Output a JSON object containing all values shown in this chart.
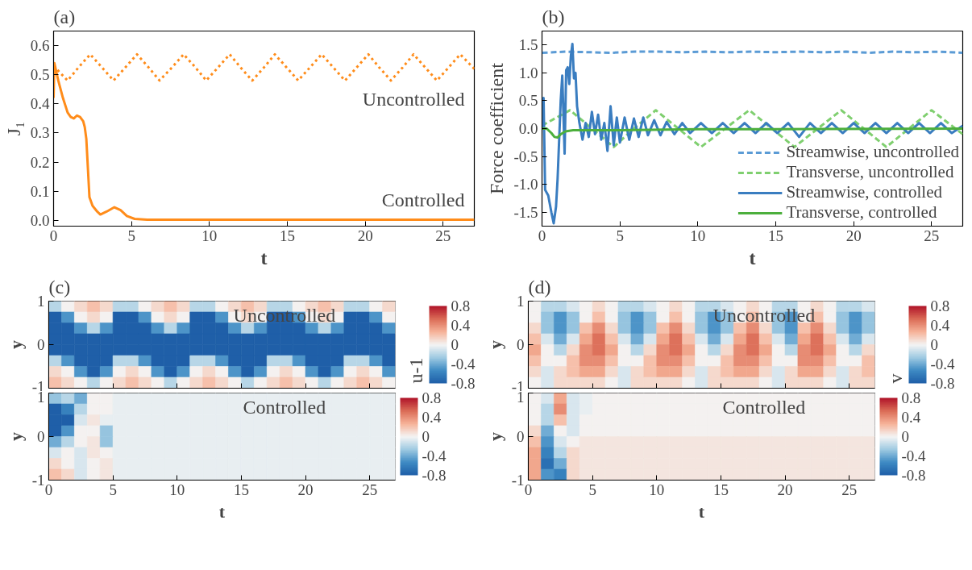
{
  "chart_data": [
    {
      "type": "line",
      "title": "(a)",
      "xlabel": "t",
      "ylabel": "J₁",
      "xlim": [
        0,
        27
      ],
      "ylim": [
        -0.02,
        0.65
      ],
      "xticks": [
        0,
        5,
        10,
        15,
        20,
        25
      ],
      "yticks": [
        {
          "value": 0,
          "label": "0.0"
        },
        {
          "value": 0.1,
          "label": "0.1"
        },
        {
          "value": 0.2,
          "label": "0.2"
        },
        {
          "value": 0.3,
          "label": "0.3"
        },
        {
          "value": 0.4,
          "label": "0.4"
        },
        {
          "value": 0.5,
          "label": "0.5"
        },
        {
          "value": 0.6,
          "label": "0.6"
        }
      ],
      "series": [
        {
          "name": "Uncontrolled",
          "color": "#ff8c1a",
          "line_style": "dotted",
          "x": [
            0,
            0.9,
            1.6,
            2.35,
            3.1,
            3.85,
            4.6,
            5.35,
            6.1,
            6.8,
            7.6,
            8.35,
            9.1,
            9.8,
            10.55,
            11.3,
            12.0,
            12.75,
            13.5,
            14.2,
            14.95,
            15.7,
            16.45,
            17.2,
            17.95,
            18.7,
            19.45,
            20.2,
            20.9,
            21.65,
            22.4,
            23.1,
            23.85,
            24.6,
            25.35,
            26.1,
            27
          ],
          "values": [
            0.53,
            0.48,
            0.525,
            0.57,
            0.525,
            0.48,
            0.525,
            0.57,
            0.525,
            0.48,
            0.525,
            0.57,
            0.525,
            0.48,
            0.525,
            0.57,
            0.525,
            0.48,
            0.525,
            0.57,
            0.525,
            0.48,
            0.525,
            0.57,
            0.525,
            0.48,
            0.525,
            0.57,
            0.525,
            0.48,
            0.525,
            0.57,
            0.525,
            0.48,
            0.525,
            0.57,
            0.52
          ]
        },
        {
          "name": "Controlled",
          "color": "#ff8c1a",
          "line_style": "solid",
          "x": [
            0,
            0.05,
            0.3,
            0.6,
            0.9,
            1.1,
            1.3,
            1.5,
            1.7,
            1.9,
            2.0,
            2.1,
            2.2,
            2.3,
            2.5,
            2.8,
            3.0,
            3.4,
            3.9,
            4.3,
            4.7,
            5.2,
            6,
            27
          ],
          "values": [
            0.42,
            0.54,
            0.48,
            0.42,
            0.37,
            0.355,
            0.35,
            0.36,
            0.355,
            0.34,
            0.32,
            0.28,
            0.18,
            0.08,
            0.05,
            0.03,
            0.02,
            0.03,
            0.045,
            0.035,
            0.015,
            0.005,
            0.002,
            0.002
          ]
        }
      ]
    },
    {
      "type": "line",
      "title": "(b)",
      "xlabel": "t",
      "ylabel": "Force coefficient",
      "xlim": [
        0,
        27
      ],
      "ylim": [
        -1.75,
        1.75
      ],
      "xticks": [
        0,
        5,
        10,
        15,
        20,
        25
      ],
      "yticks": [
        {
          "value": -1.5,
          "label": "-1.5"
        },
        {
          "value": -1,
          "label": "-1.0"
        },
        {
          "value": -0.5,
          "label": "-0.5"
        },
        {
          "value": 0,
          "label": "0.0"
        },
        {
          "value": 0.5,
          "label": "0.5"
        },
        {
          "value": 1,
          "label": "1.0"
        },
        {
          "value": 1.5,
          "label": "1.5"
        }
      ],
      "legend": "bottom right",
      "series": [
        {
          "name": "Streamwise, uncontrolled",
          "color": "#5b9bd5",
          "line_style": "dashed",
          "x": [
            0,
            1.5,
            3,
            4.5,
            6,
            7.5,
            9,
            10.5,
            12,
            13.5,
            15,
            16.5,
            18,
            19.5,
            21,
            22.5,
            24,
            25.5,
            27
          ],
          "values": [
            1.36,
            1.38,
            1.37,
            1.36,
            1.38,
            1.38,
            1.37,
            1.38,
            1.37,
            1.38,
            1.37,
            1.38,
            1.37,
            1.38,
            1.36,
            1.38,
            1.37,
            1.38,
            1.36
          ]
        },
        {
          "name": "Transverse, uncontrolled",
          "color": "#7fcf6f",
          "line_style": "dashed",
          "x": [
            0,
            0.3,
            1.8,
            3.2,
            4.6,
            5.9,
            7.3,
            8.75,
            10.2,
            11.75,
            13.3,
            14.75,
            16.2,
            17.7,
            19.2,
            20.65,
            22.1,
            23.55,
            25.0,
            27
          ],
          "values": [
            0.05,
            0.1,
            0.33,
            0,
            -0.33,
            0,
            0.33,
            0,
            -0.33,
            0,
            0.33,
            0,
            -0.33,
            0,
            0.33,
            0,
            -0.33,
            0,
            0.33,
            -0.1
          ]
        },
        {
          "name": "Streamwise, controlled",
          "color": "#3a7dc0",
          "line_style": "solid",
          "x": [
            0,
            0.1,
            0.2,
            0.4,
            0.6,
            0.75,
            0.9,
            1.0,
            1.1,
            1.2,
            1.3,
            1.45,
            1.55,
            1.65,
            1.75,
            1.85,
            1.95,
            2.05,
            2.15,
            2.25,
            2.4,
            2.6,
            2.8,
            3.0,
            3.2,
            3.4,
            3.6,
            3.8,
            4.0,
            4.2,
            4.4,
            4.6,
            4.8,
            5.0,
            5.3,
            5.6,
            5.9,
            6.2,
            6.5,
            6.8,
            7.2,
            7.6,
            8.0,
            8.5,
            9.0,
            9.5,
            10.2,
            10.9,
            11.6,
            12.3,
            13.0,
            13.7,
            14.4,
            15.1,
            15.8,
            16.5,
            17.2,
            17.9,
            18.6,
            19.3,
            20.0,
            20.7,
            21.4,
            22.1,
            22.8,
            23.5,
            24.2,
            24.9,
            25.6,
            26.3,
            27
          ],
          "values": [
            0,
            0.55,
            -1.1,
            -1.2,
            -1.5,
            -1.7,
            -1.4,
            -0.9,
            -0.2,
            0.5,
            0.95,
            -0.45,
            1.05,
            1.1,
            0.8,
            1.3,
            1.52,
            0.9,
            1.0,
            0.4,
            0.1,
            -0.2,
            0.1,
            -0.15,
            0.3,
            -0.1,
            0.25,
            -0.2,
            0.1,
            -0.4,
            0.4,
            -0.3,
            0.2,
            -0.25,
            0.2,
            -0.2,
            0.18,
            -0.15,
            0.2,
            -0.12,
            0.15,
            -0.12,
            0.12,
            -0.1,
            0.1,
            -0.08,
            0.1,
            -0.08,
            0.1,
            -0.08,
            0.1,
            -0.08,
            0.1,
            -0.08,
            0.1,
            -0.15,
            0.1,
            -0.08,
            0.1,
            -0.08,
            0.1,
            -0.08,
            0.1,
            -0.08,
            0.1,
            -0.08,
            0.1,
            -0.08,
            0.1,
            -0.08,
            0.05
          ]
        },
        {
          "name": "Transverse, controlled",
          "color": "#4caf3c",
          "line_style": "solid",
          "x": [
            0,
            0.3,
            0.6,
            0.8,
            1.0,
            1.2,
            1.5,
            2.0,
            3.0,
            5.0,
            10,
            15,
            27
          ],
          "values": [
            0,
            0,
            -0.08,
            -0.15,
            -0.16,
            -0.1,
            -0.05,
            -0.03,
            -0.03,
            -0.03,
            -0.01,
            -0.01,
            0
          ]
        }
      ]
    },
    {
      "type": "heatmap",
      "title": "(c)",
      "ylabel": "y",
      "tick_labels": "y",
      "xlim": [
        0,
        27
      ],
      "ylim": [
        -1,
        1
      ],
      "xticks": [
        0,
        5,
        10,
        15,
        20,
        25
      ],
      "yticks": [
        -1,
        0,
        1
      ],
      "clim": [
        -0.8,
        0.8
      ],
      "cticks": [
        -0.8,
        -0.4,
        0,
        0.4,
        0.8
      ],
      "clabel": "u-1",
      "annotations": [
        "Uncontrolled"
      ],
      "x": [
        0.5,
        1.5,
        2.5,
        3.5,
        4.5,
        5.5,
        6.5,
        7.5,
        8.5,
        9.5,
        10.5,
        11.5,
        12.5,
        13.5,
        14.5,
        15.5,
        16.5,
        17.5,
        18.5,
        19.5,
        20.5,
        21.5,
        22.5,
        23.5,
        24.5,
        25.5,
        26.5
      ],
      "y": [
        0.875,
        0.625,
        0.375,
        0.125,
        -0.125,
        -0.375,
        -0.625,
        -0.875
      ],
      "cells": [
        [
          -0.2,
          0,
          0.1,
          0.2,
          0.1,
          -0.2,
          -0.2,
          0,
          0.1,
          0.2,
          0.1,
          -0.2,
          -0.2,
          0,
          0.1,
          0.2,
          0.1,
          -0.2,
          -0.2,
          0,
          0.1,
          0.2,
          0.1,
          -0.2,
          -0.2,
          0,
          0.1
        ],
        [
          -0.8,
          -0.5,
          0,
          0.1,
          0,
          -0.8,
          -0.8,
          -0.5,
          0,
          0.1,
          0,
          -0.8,
          -0.8,
          -0.5,
          0,
          0.1,
          0,
          -0.8,
          -0.8,
          -0.5,
          0,
          0.1,
          0,
          -0.8,
          -0.8,
          -0.5,
          0
        ],
        [
          -0.8,
          -0.8,
          -0.5,
          -0.2,
          -0.5,
          -0.8,
          -0.8,
          -0.8,
          -0.5,
          -0.2,
          -0.5,
          -0.8,
          -0.8,
          -0.8,
          -0.5,
          -0.2,
          -0.5,
          -0.8,
          -0.8,
          -0.8,
          -0.5,
          -0.2,
          -0.5,
          -0.8,
          -0.8,
          -0.8,
          -0.5
        ],
        [
          -0.8,
          -0.8,
          -0.8,
          -0.8,
          -0.8,
          -0.8,
          -0.8,
          -0.8,
          -0.8,
          -0.8,
          -0.8,
          -0.8,
          -0.8,
          -0.8,
          -0.8,
          -0.8,
          -0.8,
          -0.8,
          -0.8,
          -0.8,
          -0.8,
          -0.8,
          -0.8,
          -0.8,
          -0.8,
          -0.8,
          -0.8
        ],
        [
          -0.8,
          -0.8,
          -0.8,
          -0.8,
          -0.8,
          -0.8,
          -0.8,
          -0.8,
          -0.8,
          -0.8,
          -0.8,
          -0.8,
          -0.8,
          -0.8,
          -0.8,
          -0.8,
          -0.8,
          -0.8,
          -0.8,
          -0.8,
          -0.8,
          -0.8,
          -0.8,
          -0.8,
          -0.8,
          -0.8,
          -0.8
        ],
        [
          -0.2,
          -0.5,
          -0.8,
          -0.8,
          -0.8,
          -0.2,
          -0.2,
          -0.5,
          -0.8,
          -0.8,
          -0.8,
          -0.2,
          -0.2,
          -0.5,
          -0.8,
          -0.8,
          -0.8,
          -0.2,
          -0.2,
          -0.5,
          -0.8,
          -0.8,
          -0.8,
          -0.2,
          -0.2,
          -0.5,
          -0.8
        ],
        [
          0.1,
          0,
          -0.5,
          -0.8,
          -0.5,
          0,
          0.1,
          0,
          -0.5,
          -0.8,
          -0.5,
          0,
          0.1,
          0,
          -0.5,
          -0.8,
          -0.5,
          0,
          0.1,
          0,
          -0.5,
          -0.8,
          -0.5,
          0,
          0.1,
          0,
          -0.5
        ],
        [
          0.2,
          0.1,
          0,
          -0.2,
          0,
          0.1,
          0.2,
          0.1,
          0,
          -0.2,
          0,
          0.1,
          0.2,
          0.1,
          0,
          -0.2,
          0,
          0.1,
          0.2,
          0.1,
          0,
          -0.2,
          0,
          0.1,
          0.2,
          0.1,
          0
        ]
      ]
    },
    {
      "type": "heatmap",
      "xlabel": "t",
      "ylabel": "y",
      "xlim": [
        0,
        27
      ],
      "ylim": [
        -1,
        1
      ],
      "xticks": [
        0,
        5,
        10,
        15,
        20,
        25
      ],
      "yticks": [
        -1,
        0,
        1
      ],
      "clim": [
        -0.8,
        0.8
      ],
      "cticks": [
        -0.8,
        -0.4,
        0,
        0.4,
        0.8
      ],
      "annotations": [
        "Controlled"
      ],
      "x": [
        0.5,
        1.5,
        2.5,
        3.5,
        4.5,
        5.5,
        6.5,
        7.5,
        8.5,
        9.5,
        10.5,
        11.5,
        12.5,
        13.5,
        14.5,
        15.5,
        16.5,
        17.5,
        18.5,
        19.5,
        20.5,
        21.5,
        22.5,
        23.5,
        24.5,
        25.5,
        26.5
      ],
      "y": [
        0.875,
        0.625,
        0.375,
        0.125,
        -0.125,
        -0.375,
        -0.625,
        -0.875
      ],
      "cells": [
        [
          -0.3,
          -0.2,
          -0.4,
          0,
          0,
          -0.05,
          -0.05,
          -0.05,
          -0.05,
          -0.05,
          -0.05,
          -0.05,
          -0.05,
          -0.05,
          -0.05,
          -0.05,
          -0.05,
          -0.05,
          -0.05,
          -0.05,
          -0.05,
          -0.05,
          -0.05,
          -0.05,
          -0.05,
          -0.05,
          -0.05
        ],
        [
          -0.8,
          -0.6,
          -0.2,
          0,
          0,
          -0.05,
          -0.05,
          -0.05,
          -0.05,
          -0.05,
          -0.05,
          -0.05,
          -0.05,
          -0.05,
          -0.05,
          -0.05,
          -0.05,
          -0.05,
          -0.05,
          -0.05,
          -0.05,
          -0.05,
          -0.05,
          -0.05,
          -0.05,
          -0.05,
          -0.05
        ],
        [
          -0.8,
          -0.8,
          -0.1,
          0.05,
          -0.05,
          -0.05,
          -0.05,
          -0.05,
          -0.05,
          -0.05,
          -0.05,
          -0.05,
          -0.05,
          -0.05,
          -0.05,
          -0.05,
          -0.05,
          -0.05,
          -0.05,
          -0.05,
          -0.05,
          -0.05,
          -0.05,
          -0.05,
          -0.05,
          -0.05,
          -0.05
        ],
        [
          -0.8,
          -0.5,
          0,
          0,
          -0.3,
          -0.05,
          -0.05,
          -0.05,
          -0.05,
          -0.05,
          -0.05,
          -0.05,
          -0.05,
          -0.05,
          -0.05,
          -0.05,
          -0.05,
          -0.05,
          -0.05,
          -0.05,
          -0.05,
          -0.05,
          -0.05,
          -0.05,
          -0.05,
          -0.05,
          -0.05
        ],
        [
          -0.4,
          -0.2,
          0,
          0.05,
          -0.3,
          -0.05,
          -0.05,
          -0.05,
          -0.05,
          -0.05,
          -0.05,
          -0.05,
          -0.05,
          -0.05,
          -0.05,
          -0.05,
          -0.05,
          -0.05,
          -0.05,
          -0.05,
          -0.05,
          -0.05,
          -0.05,
          -0.05,
          -0.05,
          -0.05,
          -0.05
        ],
        [
          -0.1,
          0,
          -0.1,
          0.05,
          0,
          -0.05,
          -0.05,
          -0.05,
          -0.05,
          -0.05,
          -0.05,
          -0.05,
          -0.05,
          -0.05,
          -0.05,
          -0.05,
          -0.05,
          -0.05,
          -0.05,
          -0.05,
          -0.05,
          -0.05,
          -0.05,
          -0.05,
          -0.05,
          -0.05,
          -0.05
        ],
        [
          0.1,
          0,
          -0.1,
          0,
          0.05,
          -0.05,
          -0.05,
          -0.05,
          -0.05,
          -0.05,
          -0.05,
          -0.05,
          -0.05,
          -0.05,
          -0.05,
          -0.05,
          -0.05,
          -0.05,
          -0.05,
          -0.05,
          -0.05,
          -0.05,
          -0.05,
          -0.05,
          -0.05,
          -0.05,
          -0.05
        ],
        [
          0.2,
          0.1,
          -0.1,
          0,
          0.05,
          -0.05,
          -0.05,
          -0.05,
          -0.05,
          -0.05,
          -0.05,
          -0.05,
          -0.05,
          -0.05,
          -0.05,
          -0.05,
          -0.05,
          -0.05,
          -0.05,
          -0.05,
          -0.05,
          -0.05,
          -0.05,
          -0.05,
          -0.05,
          -0.05,
          -0.05
        ]
      ]
    },
    {
      "type": "heatmap",
      "title": "(d)",
      "ylabel": "y",
      "tick_labels": "y",
      "xlim": [
        0,
        27
      ],
      "ylim": [
        -1,
        1
      ],
      "xticks": [
        0,
        5,
        10,
        15,
        20,
        25
      ],
      "yticks": [
        -1,
        0,
        1
      ],
      "clim": [
        -0.8,
        0.8
      ],
      "cticks": [
        -0.8,
        -0.4,
        0,
        0.4,
        0.8
      ],
      "clabel": "v",
      "annotations": [
        "Uncontrolled"
      ],
      "x": [
        0.5,
        1.5,
        2.5,
        3.5,
        4.5,
        5.5,
        6.5,
        7.5,
        8.5,
        9.5,
        10.5,
        11.5,
        12.5,
        13.5,
        14.5,
        15.5,
        16.5,
        17.5,
        18.5,
        19.5,
        20.5,
        21.5,
        22.5,
        23.5,
        24.5,
        25.5,
        26.5
      ],
      "y": [
        0.875,
        0.625,
        0.375,
        0.125,
        -0.125,
        -0.375,
        -0.625,
        -0.875
      ],
      "cells": [
        [
          0,
          -0.2,
          -0.2,
          -0.1,
          0,
          0.1,
          0,
          -0.2,
          -0.2,
          -0.1,
          0,
          0.1,
          0,
          -0.2,
          -0.2,
          -0.1,
          0,
          0.1,
          0,
          -0.2,
          -0.2,
          0,
          0.1,
          0,
          -0.2,
          -0.2,
          -0.1
        ],
        [
          0,
          -0.3,
          -0.5,
          -0.3,
          0,
          0.2,
          0,
          -0.3,
          -0.5,
          -0.3,
          0,
          0.2,
          0,
          -0.3,
          -0.5,
          -0.3,
          0,
          0.2,
          0,
          -0.3,
          -0.5,
          0,
          0.2,
          0,
          -0.3,
          -0.5,
          -0.3
        ],
        [
          0.1,
          -0.3,
          -0.5,
          -0.3,
          0.2,
          0.4,
          0.1,
          -0.3,
          -0.5,
          -0.3,
          0.2,
          0.4,
          0.1,
          -0.3,
          -0.5,
          -0.3,
          0.2,
          0.4,
          0.1,
          -0.3,
          -0.5,
          0.2,
          0.4,
          0.1,
          -0.3,
          -0.5,
          -0.3
        ],
        [
          0.2,
          -0.1,
          -0.4,
          -0.1,
          0.3,
          0.5,
          0.2,
          -0.1,
          -0.4,
          -0.1,
          0.3,
          0.5,
          0.2,
          -0.1,
          -0.4,
          -0.1,
          0.3,
          0.5,
          0.2,
          -0.1,
          -0.4,
          0.3,
          0.5,
          0.2,
          -0.1,
          -0.4,
          -0.1
        ],
        [
          0.3,
          0,
          -0.2,
          0.1,
          0.4,
          0.5,
          0.3,
          0,
          -0.2,
          0.1,
          0.4,
          0.5,
          0.3,
          0,
          -0.2,
          0.1,
          0.4,
          0.5,
          0.3,
          0,
          -0.2,
          0.4,
          0.5,
          0.3,
          0,
          -0.2,
          0.1
        ],
        [
          0.2,
          0,
          0,
          0.2,
          0.4,
          0.4,
          0.2,
          0,
          0,
          0.2,
          0.4,
          0.4,
          0.2,
          0,
          0,
          0.2,
          0.4,
          0.4,
          0.2,
          0,
          0,
          0.4,
          0.4,
          0.2,
          0,
          0,
          0.2
        ],
        [
          0.1,
          -0.1,
          0.1,
          0.2,
          0.3,
          0.3,
          0.1,
          -0.1,
          0.1,
          0.2,
          0.3,
          0.3,
          0.1,
          -0.1,
          0.1,
          0.2,
          0.3,
          0.3,
          0.1,
          -0.1,
          0.1,
          0.3,
          0.3,
          0.1,
          -0.1,
          0.1,
          0.2
        ],
        [
          0,
          -0.1,
          0.1,
          0.1,
          0.1,
          0.1,
          0,
          -0.1,
          0.1,
          0.1,
          0.1,
          0.1,
          0,
          -0.1,
          0.1,
          0.1,
          0.1,
          0.1,
          0,
          -0.1,
          0.1,
          0.1,
          0.1,
          0,
          -0.1,
          0.1,
          0.1
        ]
      ]
    },
    {
      "type": "heatmap",
      "xlabel": "t",
      "ylabel": "y",
      "xlim": [
        0,
        27
      ],
      "ylim": [
        -1,
        1
      ],
      "xticks": [
        0,
        5,
        10,
        15,
        20,
        25
      ],
      "yticks": [
        -1,
        0,
        1
      ],
      "clim": [
        -0.8,
        0.8
      ],
      "cticks": [
        -0.8,
        -0.4,
        0,
        0.4,
        0.8
      ],
      "annotations": [
        "Controlled"
      ],
      "x": [
        0.5,
        1.5,
        2.5,
        3.5,
        4.5,
        5.5,
        6.5,
        7.5,
        8.5,
        9.5,
        10.5,
        11.5,
        12.5,
        13.5,
        14.5,
        15.5,
        16.5,
        17.5,
        18.5,
        19.5,
        20.5,
        21.5,
        22.5,
        23.5,
        24.5,
        25.5,
        26.5
      ],
      "y": [
        0.875,
        0.625,
        0.375,
        0.125,
        -0.125,
        -0.375,
        -0.625,
        -0.875
      ],
      "cells": [
        [
          0,
          -0.1,
          0.3,
          -0.1,
          -0.05,
          0,
          0,
          0,
          0,
          0,
          0,
          0,
          0,
          0,
          0,
          0,
          0,
          0,
          0,
          0,
          0,
          0,
          0,
          0,
          0,
          0,
          0
        ],
        [
          0,
          -0.2,
          0.4,
          -0.1,
          -0.05,
          0,
          0,
          0,
          0,
          0,
          0,
          0,
          0,
          0,
          0,
          0,
          0,
          0,
          0,
          0,
          0,
          0,
          0,
          0,
          0,
          0,
          0
        ],
        [
          0,
          -0.2,
          0.2,
          -0.1,
          0,
          0,
          0,
          0,
          0,
          0,
          0,
          0,
          0,
          0,
          0,
          0,
          0,
          0,
          0,
          0,
          0,
          0,
          0,
          0,
          0,
          0,
          0
        ],
        [
          0.1,
          -0.4,
          0,
          -0.1,
          0,
          0,
          0,
          0,
          0,
          0,
          0,
          0,
          0,
          0,
          0,
          0,
          0,
          0,
          0,
          0,
          0,
          0,
          0,
          0,
          0,
          0,
          0
        ],
        [
          0.2,
          -0.5,
          -0.1,
          0,
          0.05,
          0.05,
          0.05,
          0.05,
          0.05,
          0.05,
          0.05,
          0.05,
          0.05,
          0.05,
          0.05,
          0.05,
          0.05,
          0.05,
          0.05,
          0.05,
          0.05,
          0.05,
          0.05,
          0.05,
          0.05,
          0.05,
          0.05
        ],
        [
          0.3,
          -0.6,
          -0.2,
          0.1,
          0.05,
          0.05,
          0.05,
          0.05,
          0.05,
          0.05,
          0.05,
          0.05,
          0.05,
          0.05,
          0.05,
          0.05,
          0.05,
          0.05,
          0.05,
          0.05,
          0.05,
          0.05,
          0.05,
          0.05,
          0.05,
          0.05,
          0.05
        ],
        [
          0.3,
          -0.7,
          -0.4,
          0.1,
          0.05,
          0.05,
          0.05,
          0.05,
          0.05,
          0.05,
          0.05,
          0.05,
          0.05,
          0.05,
          0.05,
          0.05,
          0.05,
          0.05,
          0.05,
          0.05,
          0.05,
          0.05,
          0.05,
          0.05,
          0.05,
          0.05,
          0.05
        ],
        [
          0.3,
          -0.5,
          -0.6,
          0.1,
          0.05,
          0.05,
          0.05,
          0.05,
          0.05,
          0.05,
          0.05,
          0.05,
          0.05,
          0.05,
          0.05,
          0.05,
          0.05,
          0.05,
          0.05,
          0.05,
          0.05,
          0.05,
          0.05,
          0.05,
          0.05,
          0.05,
          0.05
        ]
      ]
    }
  ]
}
